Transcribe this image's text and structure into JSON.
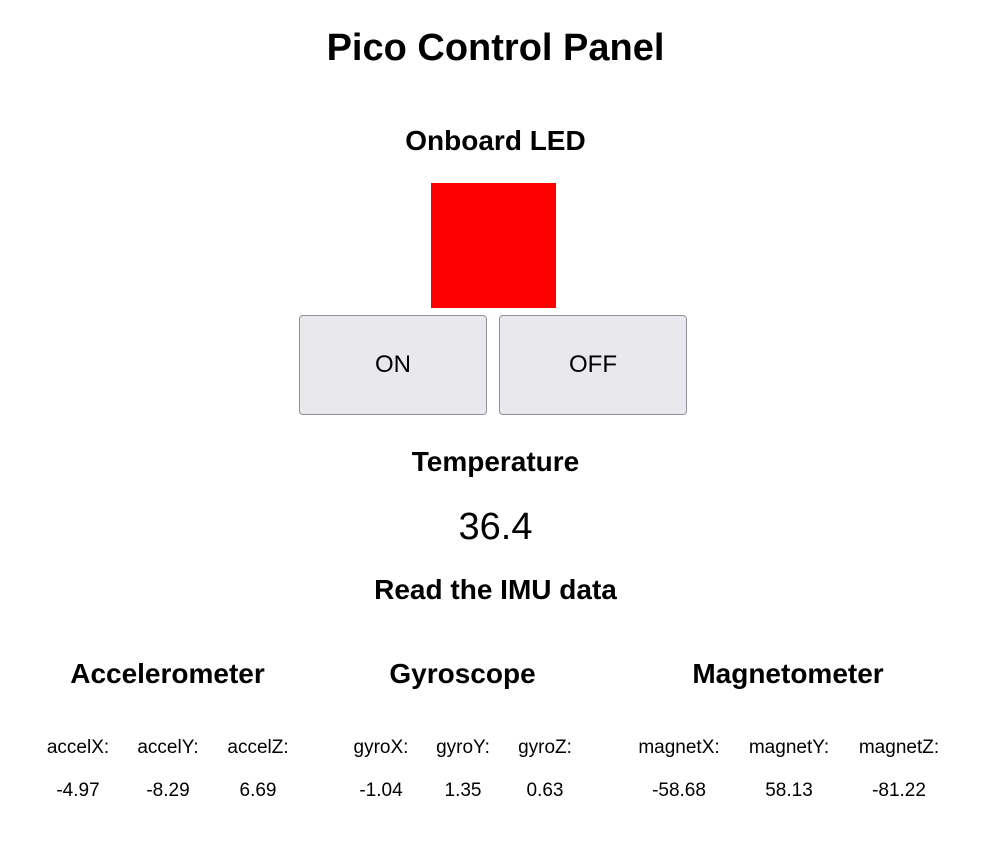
{
  "header": {
    "title": "Pico Control Panel"
  },
  "led": {
    "heading": "Onboard LED",
    "indicator_color": "#ff0000",
    "on_label": "ON",
    "off_label": "OFF"
  },
  "temperature": {
    "heading": "Temperature",
    "value": "36.4"
  },
  "imu": {
    "heading": "Read the IMU data",
    "accelerometer": {
      "heading": "Accelerometer",
      "labels": [
        "accelX:",
        "accelY:",
        "accelZ:"
      ],
      "values": [
        "-4.97",
        "-8.29",
        "6.69"
      ]
    },
    "gyroscope": {
      "heading": "Gyroscope",
      "labels": [
        "gyroX:",
        "gyroY:",
        "gyroZ:"
      ],
      "values": [
        "-1.04",
        "1.35",
        "0.63"
      ]
    },
    "magnetometer": {
      "heading": "Magnetometer",
      "labels": [
        "magnetX:",
        "magnetY:",
        "magnetZ:"
      ],
      "values": [
        "-58.68",
        "58.13",
        "-81.22"
      ]
    }
  }
}
